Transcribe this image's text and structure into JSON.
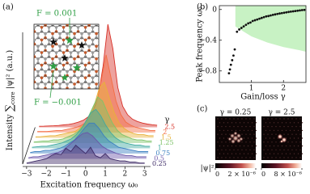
{
  "chart_data": [
    {
      "type": "waterfall",
      "panel": "(a)",
      "xlabel": "Excitation frequency ω₀",
      "ylabel": {
        "text": "Intensity",
        "sum": "∑",
        "sub": "core",
        "expr": "|ψ|² (a.u.)"
      },
      "xlim": [
        -3.2,
        3.3
      ],
      "xticks": [
        {
          "value": -3,
          "label": "−3"
        },
        {
          "value": -2,
          "label": "−2"
        },
        {
          "value": -1,
          "label": "−1"
        },
        0,
        1,
        2,
        3
      ],
      "x": [
        -3,
        -2.75,
        -2.5,
        -2.25,
        -2,
        -1.75,
        -1.5,
        -1.25,
        -1,
        -0.75,
        -0.5,
        -0.25,
        0,
        0.25,
        0.5,
        0.75,
        1,
        1.25,
        1.5,
        1.75,
        2,
        2.25,
        2.5,
        2.75,
        3
      ],
      "legend_title": "γ",
      "series": [
        {
          "name": "2.5",
          "color": "#d73027",
          "values": [
            0.01,
            0.011,
            0.013,
            0.015,
            0.018,
            0.023,
            0.028,
            0.036,
            0.049,
            0.068,
            0.1,
            0.16,
            0.29,
            0.58,
            0.98,
            0.75,
            0.38,
            0.2,
            0.12,
            0.078,
            0.055,
            0.041,
            0.031,
            0.025,
            0.02
          ]
        },
        {
          "name": "2",
          "color": "#f46d43",
          "values": [
            0.01,
            0.01,
            0.01,
            0.015,
            0.02,
            0.02,
            0.03,
            0.04,
            0.05,
            0.07,
            0.1,
            0.16,
            0.27,
            0.5,
            0.74,
            0.52,
            0.3,
            0.17,
            0.1,
            0.07,
            0.05,
            0.04,
            0.03,
            0.02,
            0.02
          ]
        },
        {
          "name": "1.5",
          "color": "#e8b13a",
          "values": [
            0.01,
            0.01,
            0.015,
            0.02,
            0.02,
            0.03,
            0.04,
            0.05,
            0.06,
            0.09,
            0.13,
            0.2,
            0.32,
            0.48,
            0.53,
            0.38,
            0.24,
            0.14,
            0.09,
            0.06,
            0.04,
            0.03,
            0.03,
            0.02,
            0.02
          ]
        },
        {
          "name": "1.25",
          "color": "#7fc36a",
          "values": [
            0.01,
            0.015,
            0.02,
            0.02,
            0.03,
            0.03,
            0.04,
            0.06,
            0.08,
            0.11,
            0.16,
            0.24,
            0.34,
            0.44,
            0.4,
            0.29,
            0.19,
            0.12,
            0.08,
            0.06,
            0.04,
            0.03,
            0.03,
            0.02,
            0.02
          ]
        },
        {
          "name": "1",
          "color": "#3fa9a0",
          "values": [
            0.01,
            0.015,
            0.02,
            0.02,
            0.03,
            0.04,
            0.05,
            0.07,
            0.09,
            0.13,
            0.18,
            0.26,
            0.34,
            0.37,
            0.31,
            0.22,
            0.15,
            0.1,
            0.07,
            0.05,
            0.04,
            0.03,
            0.03,
            0.02,
            0.02
          ]
        },
        {
          "name": "0.75",
          "color": "#3a7fc0",
          "values": [
            0.01,
            0.02,
            0.02,
            0.03,
            0.03,
            0.04,
            0.05,
            0.07,
            0.1,
            0.13,
            0.18,
            0.24,
            0.29,
            0.29,
            0.24,
            0.17,
            0.12,
            0.09,
            0.06,
            0.05,
            0.04,
            0.03,
            0.02,
            0.02,
            0.02
          ]
        },
        {
          "name": "0.5",
          "color": "#6a55a8",
          "values": [
            0.01,
            0.02,
            0.02,
            0.03,
            0.04,
            0.05,
            0.06,
            0.08,
            0.12,
            0.16,
            0.2,
            0.24,
            0.25,
            0.22,
            0.17,
            0.12,
            0.09,
            0.07,
            0.05,
            0.04,
            0.03,
            0.03,
            0.02,
            0.02,
            0.02
          ]
        },
        {
          "name": "0.25",
          "color": "#3d2a66",
          "values": [
            0.01,
            0.02,
            0.03,
            0.04,
            0.05,
            0.08,
            0.1,
            0.09,
            0.15,
            0.12,
            0.18,
            0.14,
            0.1,
            0.16,
            0.08,
            0.06,
            0.1,
            0.05,
            0.04,
            0.03,
            0.03,
            0.02,
            0.02,
            0.01,
            0.01
          ]
        }
      ],
      "annotations": [
        {
          "text": "F = 0.001",
          "color": "#2e9e44"
        },
        {
          "text": "F = −0.001",
          "color": "#2e9e44"
        }
      ]
    },
    {
      "type": "scatter",
      "panel": "(b)",
      "xlabel": "Gain/loss γ",
      "ylabel": "Peak frequency ω₀",
      "xlim": [
        0,
        2.7
      ],
      "ylim": [
        -0.95,
        0.05
      ],
      "xticks": [
        1,
        2
      ],
      "yticks": [
        0,
        {
          "value": -0.4,
          "label": "−0.4"
        },
        {
          "value": -0.8,
          "label": "−0.8"
        }
      ],
      "color": "#111111",
      "x": [
        0.3,
        0.33,
        0.36,
        0.4,
        0.44,
        0.48,
        0.55,
        0.62,
        0.69,
        0.76,
        0.83,
        0.9,
        0.97,
        1.04,
        1.11,
        1.18,
        1.25,
        1.32,
        1.39,
        1.46,
        1.53,
        1.6,
        1.67,
        1.74,
        1.81,
        1.88,
        1.95,
        2.02,
        2.09,
        2.16,
        2.23,
        2.3,
        2.37,
        2.44,
        2.51,
        2.58,
        2.65
      ],
      "values": [
        -0.83,
        -0.78,
        -0.72,
        -0.66,
        -0.6,
        -0.52,
        -0.29,
        -0.26,
        -0.24,
        -0.22,
        -0.2,
        -0.18,
        -0.17,
        -0.15,
        -0.14,
        -0.13,
        -0.12,
        -0.11,
        -0.1,
        -0.09,
        -0.085,
        -0.078,
        -0.07,
        -0.064,
        -0.058,
        -0.052,
        -0.047,
        -0.042,
        -0.037,
        -0.032,
        -0.028,
        -0.024,
        -0.02,
        -0.016,
        -0.012,
        -0.008,
        -0.005
      ],
      "band": {
        "color": "#c8f2c4",
        "x": [
          0.5,
          1,
          1.5,
          2,
          2.5,
          2.7
        ],
        "lower": [
          -0.22,
          -0.35,
          -0.43,
          -0.49,
          -0.53,
          -0.55
        ],
        "upper": [
          0.05,
          0.05,
          0.05,
          0.05,
          0.05,
          0.05
        ]
      }
    },
    {
      "type": "image",
      "panel": "(c)",
      "colorbar_label": "|ψ|²",
      "images": [
        {
          "title": "γ = 0.25",
          "clim": [
            0,
            2e-06
          ],
          "cticks": [
            0,
            {
              "value": 2e-06,
              "label": "2 × 10⁻⁶"
            }
          ]
        },
        {
          "title": "γ = 2.5",
          "clim": [
            0,
            8e-06
          ],
          "cticks": [
            0,
            {
              "value": 8e-06,
              "label": "8 × 10⁻⁶"
            }
          ]
        }
      ]
    }
  ]
}
